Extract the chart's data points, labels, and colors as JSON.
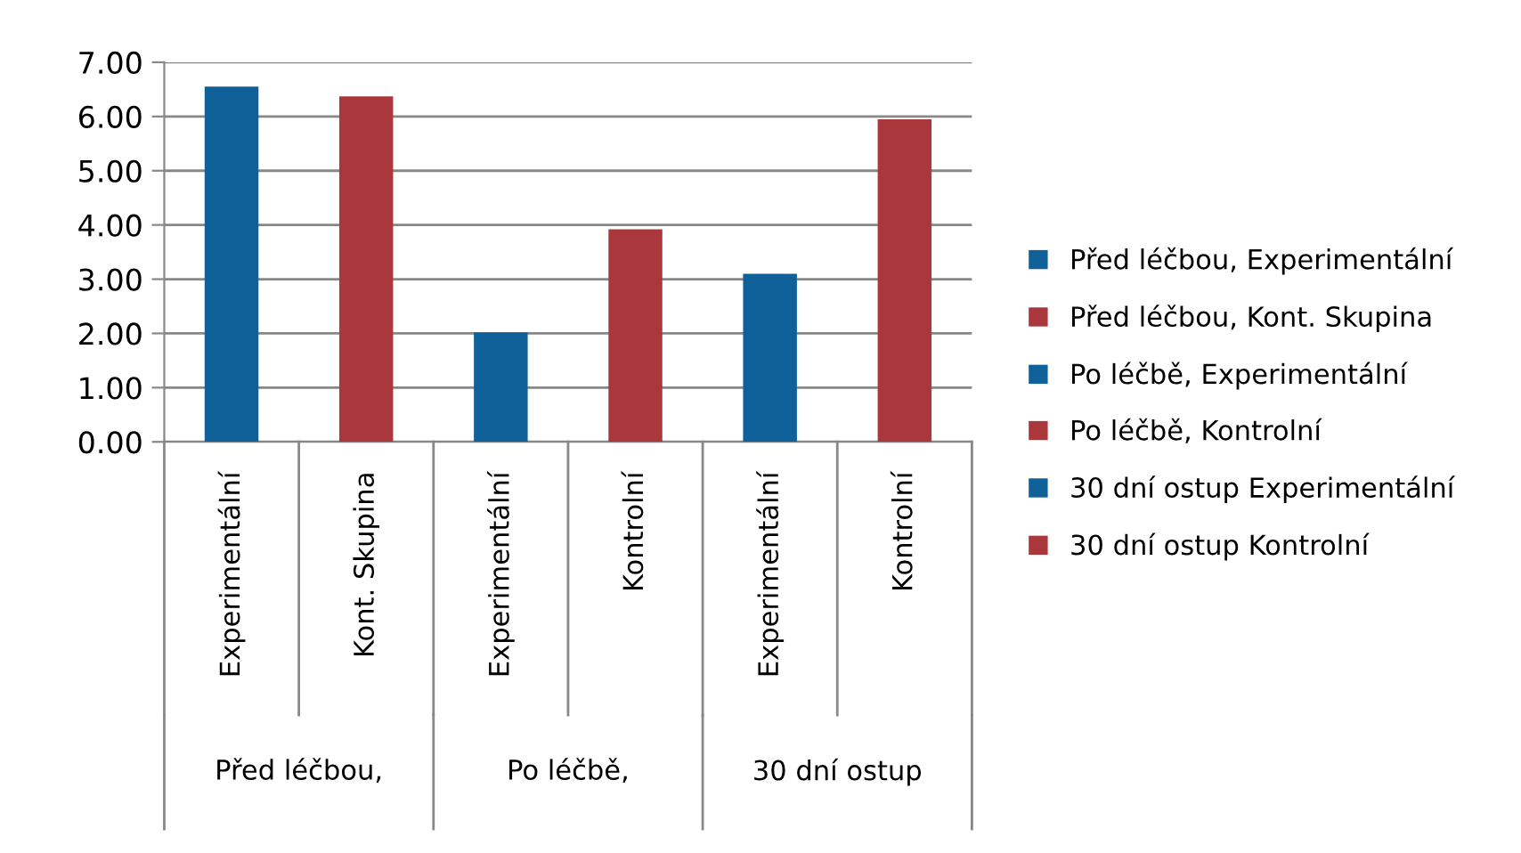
{
  "chart_data": {
    "type": "bar",
    "categories": [
      "Experimentální",
      "Kont. Skupina",
      "Experimentální",
      "Kontrolní",
      "Experimentální",
      "Kontrolní"
    ],
    "annotations": [
      "Před léčbou,",
      "Po léčbě,",
      "30 dní ostup"
    ],
    "series": [
      {
        "name": "Před léčbou, Experimentální",
        "color": "#10609a",
        "values": [
          6.55,
          null,
          null,
          null,
          null,
          null
        ]
      },
      {
        "name": "Před léčbou, Kont. Skupina",
        "color": "#a9373b",
        "values": [
          null,
          6.37,
          null,
          null,
          null,
          null
        ]
      },
      {
        "name": "Po léčbě, Experimentální",
        "color": "#10609a",
        "values": [
          null,
          null,
          2.02,
          null,
          null,
          null
        ]
      },
      {
        "name": "Po léčbě, Kontrolní",
        "color": "#a9373b",
        "values": [
          null,
          null,
          null,
          3.92,
          null,
          null
        ]
      },
      {
        "name": "30 dní ostup Experimentální",
        "color": "#10609a",
        "values": [
          null,
          null,
          null,
          null,
          3.1,
          null
        ]
      },
      {
        "name": "30 dní ostup Kontrolní",
        "color": "#a9373b",
        "values": [
          null,
          null,
          null,
          null,
          null,
          5.95
        ]
      }
    ],
    "ylim": [
      0,
      7
    ],
    "yticks": [
      {
        "value": 0,
        "label": "0.00"
      },
      {
        "value": 1,
        "label": "1.00"
      },
      {
        "value": 2,
        "label": "2.00"
      },
      {
        "value": 3,
        "label": "3.00"
      },
      {
        "value": 4,
        "label": "4.00"
      },
      {
        "value": 5,
        "label": "5.00"
      },
      {
        "value": 6,
        "label": "6.00"
      },
      {
        "value": 7,
        "label": "7.00"
      }
    ],
    "grid": "y",
    "legend": "right"
  }
}
